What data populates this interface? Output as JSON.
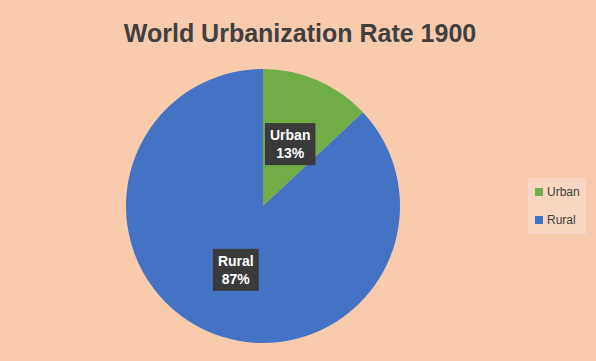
{
  "chart_data": {
    "type": "pie",
    "title": "World Urbanization Rate 1900",
    "categories": [
      "Urban",
      "Rural"
    ],
    "values": [
      13,
      87
    ],
    "value_labels": [
      "13%",
      "87%"
    ],
    "colors": [
      "#70ad47",
      "#4472c4"
    ],
    "data_labels": true,
    "legend": "right"
  }
}
